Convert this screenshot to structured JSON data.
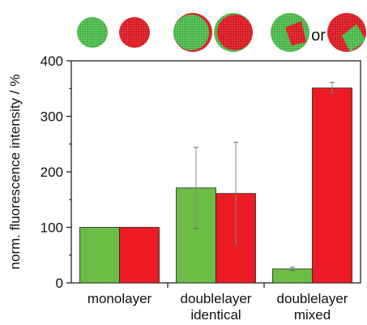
{
  "chart_data": {
    "type": "bar",
    "icon_label": "or",
    "y_label": "norm. fluorescence intensity / %",
    "categories": [
      "monolayer",
      "doublelayer identical",
      "doublelayer mixed"
    ],
    "series": [
      {
        "color": "#6cbd45",
        "values": [
          100,
          171,
          25
        ],
        "errors": [
          0,
          73,
          3
        ]
      },
      {
        "color": "#ed1c24",
        "values": [
          100,
          161,
          351
        ],
        "errors": [
          0,
          92,
          10
        ]
      }
    ],
    "ylim": [
      0,
      400
    ],
    "yticks": [
      0,
      100,
      200,
      300,
      400
    ]
  }
}
